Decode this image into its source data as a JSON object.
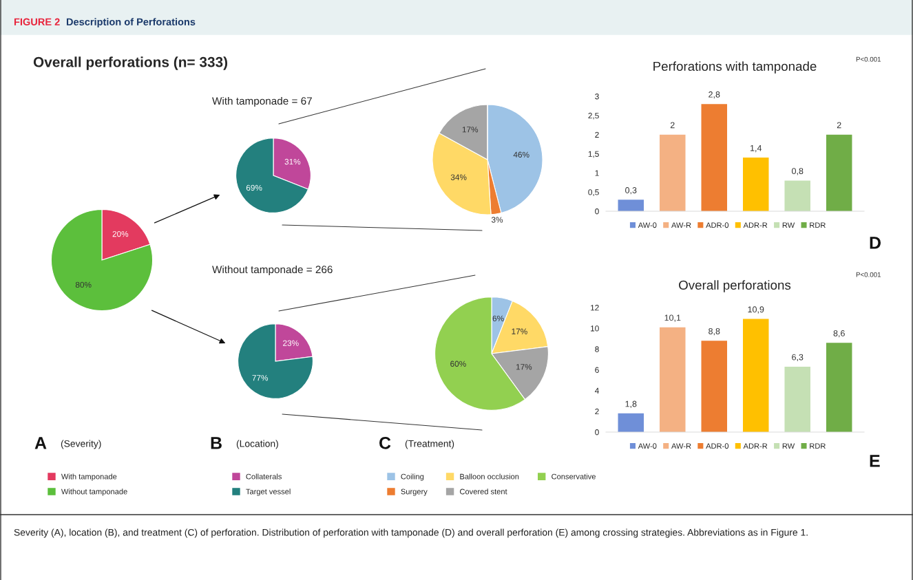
{
  "chart_data": [
    {
      "type": "pie",
      "title": "Overall perforations (n= 333)",
      "categories": [
        "With tamponade",
        "Without tamponade"
      ],
      "values": [
        20,
        80
      ],
      "colors": [
        "#e33a5f",
        "#5cbf3c"
      ],
      "value_labels": [
        "20%",
        "80%"
      ],
      "legend": "bottom",
      "annotations": [
        "FIGURE 2",
        "Description of Perforations",
        "Severity (A), location (B), and treatment (C) of perforation. Distribution of perforation with tamponade (D) and overall perforation (E) among crossing strategies. Abbreviations as in Figure 1.",
        "A",
        "(Severity)"
      ]
    },
    {
      "type": "pie",
      "title": "With tamponade = 67",
      "categories": [
        "Collaterals",
        "Target vessel"
      ],
      "values": [
        31,
        69
      ],
      "colors": [
        "#c0479a",
        "#23807e"
      ],
      "value_labels": [
        "31%",
        "69%"
      ],
      "legend": "bottom"
    },
    {
      "type": "pie",
      "title": "Without tamponade = 266",
      "categories": [
        null,
        null
      ],
      "values": [
        23,
        77
      ],
      "colors": [
        "#c0479a",
        "#23807e"
      ],
      "value_labels": [
        "23%",
        "77%"
      ],
      "annotations": [
        "B",
        "(Location)"
      ]
    },
    {
      "type": "pie",
      "categories": [
        "Coiling",
        "Surgery",
        "Balloon occlusion",
        "Covered stent",
        "Conservative"
      ],
      "values": [
        46,
        3,
        34,
        17,
        0
      ],
      "colors": [
        "#9dc3e6",
        "#ed7d31",
        "#ffd966",
        "#a5a5a5",
        "#92d050"
      ],
      "value_labels": [
        "46%",
        "3%",
        "34%",
        "17%",
        null
      ],
      "legend": "bottom"
    },
    {
      "type": "pie",
      "categories": [
        null,
        null,
        null,
        null
      ],
      "values": [
        6,
        17,
        17,
        60
      ],
      "colors": [
        "#9dc3e6",
        "#ffd966",
        "#a5a5a5",
        "#92d050"
      ],
      "value_labels": [
        "6%",
        "17%",
        "17%",
        "60%"
      ],
      "annotations": [
        "C",
        "(Treatment)"
      ]
    },
    {
      "type": "bar",
      "title": "Perforations with tamponade",
      "categories": [
        null,
        null,
        null,
        null,
        null,
        null
      ],
      "stacked": true,
      "series": [
        {
          "name": "AW-0",
          "color": "#6f8fd8",
          "values": [
            0.3,
            null,
            null,
            null,
            null,
            null
          ],
          "value_labels": [
            "0,3",
            null,
            null,
            null,
            null,
            null
          ]
        },
        {
          "name": "AW-R",
          "color": "#f4b183",
          "values": [
            null,
            2,
            null,
            null,
            null,
            null
          ],
          "value_labels": [
            null,
            "2",
            null,
            null,
            null,
            null
          ]
        },
        {
          "name": "ADR-0",
          "color": "#ed7d31",
          "values": [
            null,
            null,
            2.8,
            null,
            null,
            null
          ],
          "value_labels": [
            null,
            null,
            "2,8",
            null,
            null,
            null
          ]
        },
        {
          "name": "ADR-R",
          "color": "#ffc000",
          "values": [
            null,
            null,
            null,
            1.4,
            null,
            null
          ],
          "value_labels": [
            null,
            null,
            null,
            "1,4",
            null,
            null
          ]
        },
        {
          "name": "RW",
          "color": "#c5e0b4",
          "values": [
            null,
            null,
            null,
            null,
            0.8,
            null
          ],
          "value_labels": [
            null,
            null,
            null,
            null,
            "0,8",
            null
          ]
        },
        {
          "name": "RDR",
          "color": "#70ad47",
          "values": [
            null,
            null,
            null,
            null,
            null,
            2
          ],
          "value_labels": [
            null,
            null,
            null,
            null,
            null,
            "2"
          ]
        }
      ],
      "ylim": [
        0,
        3
      ],
      "yticks": [
        0,
        {
          "value": 0.5,
          "label": "0,5"
        },
        1,
        {
          "value": 1.5,
          "label": "1,5"
        },
        2,
        {
          "value": 2.5,
          "label": "2,5"
        },
        3
      ],
      "tick_labels": "y",
      "legend": "bottom",
      "annotations": [
        "P<0.001",
        "D"
      ]
    },
    {
      "type": "bar",
      "title": "Overall perforations",
      "categories": [
        null,
        null,
        null,
        null,
        null,
        null
      ],
      "stacked": true,
      "series": [
        {
          "name": "AW-0",
          "color": "#6f8fd8",
          "values": [
            1.8,
            null,
            null,
            null,
            null,
            null
          ],
          "value_labels": [
            "1,8",
            null,
            null,
            null,
            null,
            null
          ]
        },
        {
          "name": "AW-R",
          "color": "#f4b183",
          "values": [
            null,
            10.1,
            null,
            null,
            null,
            null
          ],
          "value_labels": [
            null,
            "10,1",
            null,
            null,
            null,
            null
          ]
        },
        {
          "name": "ADR-0",
          "color": "#ed7d31",
          "values": [
            null,
            null,
            8.8,
            null,
            null,
            null
          ],
          "value_labels": [
            null,
            null,
            "8,8",
            null,
            null,
            null
          ]
        },
        {
          "name": "ADR-R",
          "color": "#ffc000",
          "values": [
            null,
            null,
            null,
            10.9,
            null,
            null
          ],
          "value_labels": [
            null,
            null,
            null,
            "10,9",
            null,
            null
          ]
        },
        {
          "name": "RW",
          "color": "#c5e0b4",
          "values": [
            null,
            null,
            null,
            null,
            6.3,
            null
          ],
          "value_labels": [
            null,
            null,
            null,
            null,
            "6,3",
            null
          ]
        },
        {
          "name": "RDR",
          "color": "#70ad47",
          "values": [
            null,
            null,
            null,
            null,
            null,
            8.6
          ],
          "value_labels": [
            null,
            null,
            null,
            null,
            null,
            "8,6"
          ]
        }
      ],
      "ylim": [
        0,
        12
      ],
      "yticks": [
        0,
        2,
        4,
        6,
        8,
        10,
        12
      ],
      "tick_labels": "y",
      "legend": "bottom",
      "annotations": [
        "P<0.001",
        "E"
      ]
    }
  ]
}
